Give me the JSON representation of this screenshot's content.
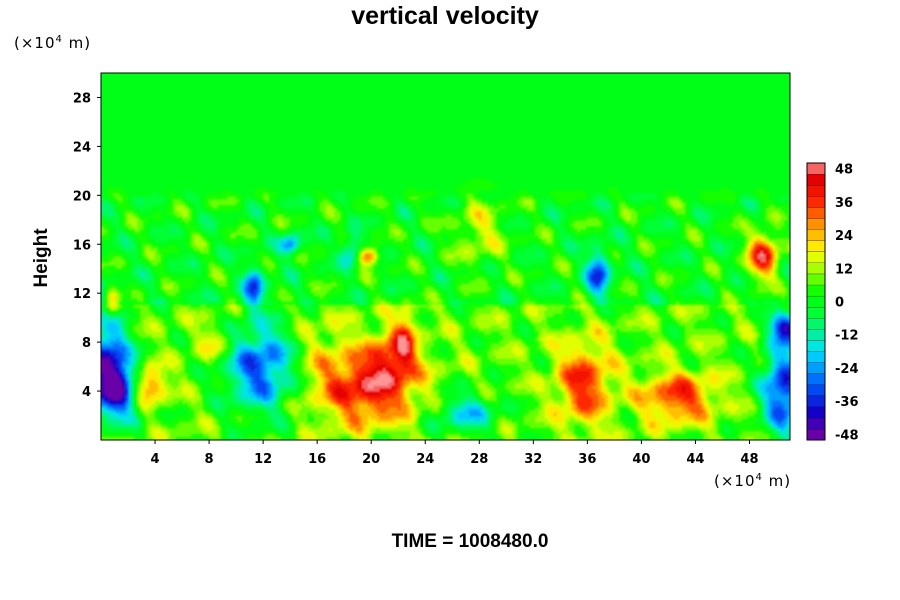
{
  "chart_data": {
    "type": "heatmap",
    "title": "vertical velocity",
    "ylabel": "Height",
    "y_unit_prefix": "(×10",
    "y_unit_exp": "4",
    "y_unit_suffix": " m)",
    "x_unit_prefix": "(×10",
    "x_unit_exp": "4",
    "x_unit_suffix": " m)",
    "xlim": [
      0,
      51
    ],
    "ylim": [
      0,
      30
    ],
    "x_ticks": [
      "4",
      "8",
      "12",
      "16",
      "20",
      "24",
      "28",
      "32",
      "36",
      "40",
      "44",
      "48"
    ],
    "x_tick_values": [
      4,
      8,
      12,
      16,
      20,
      24,
      28,
      32,
      36,
      40,
      44,
      48
    ],
    "y_ticks": [
      "4",
      "8",
      "12",
      "16",
      "20",
      "24",
      "28"
    ],
    "y_tick_values": [
      4,
      8,
      12,
      16,
      20,
      24,
      28
    ],
    "colorbar": {
      "min": -50,
      "max": 50,
      "step": 4,
      "tick_labels": [
        "48",
        "36",
        "24",
        "12",
        "0",
        "-12",
        "-24",
        "-36",
        "-48"
      ],
      "tick_values": [
        48,
        36,
        24,
        12,
        0,
        -12,
        -24,
        -36,
        -48
      ]
    },
    "features": [
      {
        "x": 1.2,
        "y": 4.3,
        "sx": 1.3,
        "sy": 1.8,
        "value": -50
      },
      {
        "x": 0.5,
        "y": 7.5,
        "sx": 1.0,
        "sy": 2.6,
        "value": -34
      },
      {
        "x": 3.4,
        "y": 4.5,
        "sx": 0.9,
        "sy": 1.1,
        "value": 34
      },
      {
        "x": 11.8,
        "y": 6.0,
        "sx": 1.9,
        "sy": 2.6,
        "value": -38
      },
      {
        "x": 11.3,
        "y": 12.5,
        "sx": 0.5,
        "sy": 1.1,
        "value": -32
      },
      {
        "x": 19.8,
        "y": 4.3,
        "sx": 2.5,
        "sy": 2.1,
        "value": 36
      },
      {
        "x": 21.7,
        "y": 7.0,
        "sx": 1.2,
        "sy": 1.5,
        "value": 22
      },
      {
        "x": 22.5,
        "y": 8.5,
        "sx": 0.5,
        "sy": 1.6,
        "value": 20
      },
      {
        "x": 27.0,
        "y": 2.2,
        "sx": 1.7,
        "sy": 1.2,
        "value": -24
      },
      {
        "x": 35.7,
        "y": 4.6,
        "sx": 1.4,
        "sy": 2.3,
        "value": 30
      },
      {
        "x": 42.7,
        "y": 3.5,
        "sx": 1.9,
        "sy": 1.4,
        "value": 30
      },
      {
        "x": 50.5,
        "y": 4.2,
        "sx": 1.1,
        "sy": 2.7,
        "value": -44
      },
      {
        "x": 50.7,
        "y": 9.3,
        "sx": 0.8,
        "sy": 0.8,
        "value": -44
      },
      {
        "x": 49.0,
        "y": 15.1,
        "sx": 0.8,
        "sy": 1.3,
        "value": 40
      },
      {
        "x": 36.8,
        "y": 13.6,
        "sx": 0.6,
        "sy": 1.3,
        "value": -34
      },
      {
        "x": 19.8,
        "y": 15.0,
        "sx": 0.5,
        "sy": 0.5,
        "value": 36
      },
      {
        "x": 0.8,
        "y": 11.2,
        "sx": 0.4,
        "sy": 1.0,
        "value": 28
      },
      {
        "x": 14.0,
        "y": 16.0,
        "sx": 0.5,
        "sy": 0.6,
        "value": -28
      },
      {
        "x": 18.5,
        "y": 15.5,
        "sx": 0.5,
        "sy": 0.9,
        "value": -22
      },
      {
        "x": 28.0,
        "y": 17.0,
        "sx": 1.3,
        "sy": 1.9,
        "value": 14
      },
      {
        "x": 16.0,
        "y": 7.0,
        "sx": 1.5,
        "sy": 2.5,
        "value": 8
      },
      {
        "x": 8.5,
        "y": 8.0,
        "sx": 1.0,
        "sy": 1.0,
        "value": 14
      }
    ]
  },
  "footer": {
    "time_text": "TIME = 1008480.0"
  }
}
